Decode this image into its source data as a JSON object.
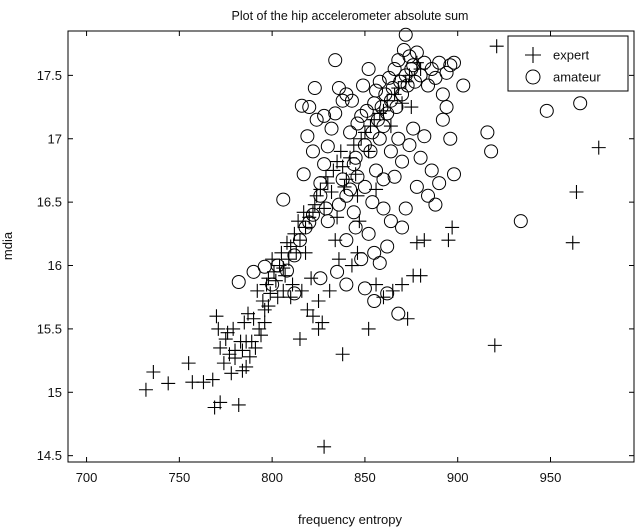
{
  "chart_data": {
    "type": "scatter",
    "title": "Plot of  the hip accelerometer absolute sum",
    "xlabel": "frequency entropy",
    "ylabel": "mdia",
    "xlim": [
      690,
      995
    ],
    "ylim": [
      14.45,
      17.85
    ],
    "xticks": [
      700,
      750,
      800,
      850,
      900,
      950
    ],
    "yticks": [
      14.5,
      15,
      15.5,
      16,
      16.5,
      17,
      17.5
    ],
    "xtick_labels": [
      "700",
      "750",
      "800",
      "850",
      "900",
      "950"
    ],
    "ytick_labels": [
      "14.5",
      "15",
      "15.5",
      "16",
      "16.5",
      "17",
      "17.5"
    ],
    "grid": false,
    "legend_position": "top-right",
    "series": [
      {
        "name": "expert",
        "marker": "plus",
        "color": "#000000",
        "points": [
          [
            732,
            15.02
          ],
          [
            736,
            15.16
          ],
          [
            744,
            15.07
          ],
          [
            755,
            15.23
          ],
          [
            757,
            15.08
          ],
          [
            763,
            15.08
          ],
          [
            768,
            15.1
          ],
          [
            769,
            14.88
          ],
          [
            772,
            14.92
          ],
          [
            770,
            15.6
          ],
          [
            771,
            15.5
          ],
          [
            772,
            15.35
          ],
          [
            774,
            15.23
          ],
          [
            775,
            15.42
          ],
          [
            776,
            15.47
          ],
          [
            778,
            15.15
          ],
          [
            779,
            15.5
          ],
          [
            780,
            15.33
          ],
          [
            782,
            14.9
          ],
          [
            783,
            15.4
          ],
          [
            784,
            15.17
          ],
          [
            785,
            15.55
          ],
          [
            786,
            15.2
          ],
          [
            787,
            15.62
          ],
          [
            789,
            15.4
          ],
          [
            790,
            15.58
          ],
          [
            792,
            15.8
          ],
          [
            793,
            15.5
          ],
          [
            795,
            15.72
          ],
          [
            796,
            15.65
          ],
          [
            797,
            15.85
          ],
          [
            798,
            15.9
          ],
          [
            799,
            15.78
          ],
          [
            800,
            16.05
          ],
          [
            801,
            15.95
          ],
          [
            802,
            15.88
          ],
          [
            803,
            15.75
          ],
          [
            804,
            16.0
          ],
          [
            805,
            16.1
          ],
          [
            806,
            15.98
          ],
          [
            807,
            15.92
          ],
          [
            808,
            16.18
          ],
          [
            809,
            16.05
          ],
          [
            810,
            16.15
          ],
          [
            811,
            15.85
          ],
          [
            812,
            16.25
          ],
          [
            813,
            16.1
          ],
          [
            814,
            16.35
          ],
          [
            815,
            16.2
          ],
          [
            816,
            15.8
          ],
          [
            817,
            16.42
          ],
          [
            818,
            16.3
          ],
          [
            819,
            15.65
          ],
          [
            820,
            16.38
          ],
          [
            821,
            15.9
          ],
          [
            822,
            15.6
          ],
          [
            823,
            16.48
          ],
          [
            824,
            16.55
          ],
          [
            825,
            15.72
          ],
          [
            826,
            16.6
          ],
          [
            827,
            15.55
          ],
          [
            828,
            16.45
          ],
          [
            829,
            16.7
          ],
          [
            830,
            16.65
          ],
          [
            831,
            15.8
          ],
          [
            832,
            16.58
          ],
          [
            833,
            16.75
          ],
          [
            834,
            16.2
          ],
          [
            835,
            16.82
          ],
          [
            836,
            16.05
          ],
          [
            837,
            16.9
          ],
          [
            838,
            16.78
          ],
          [
            839,
            16.62
          ],
          [
            840,
            16.68
          ],
          [
            842,
            16.85
          ],
          [
            844,
            16.95
          ],
          [
            845,
            16.72
          ],
          [
            846,
            16.55
          ],
          [
            848,
            17.0
          ],
          [
            850,
            17.05
          ],
          [
            852,
            16.9
          ],
          [
            853,
            17.1
          ],
          [
            855,
            17.15
          ],
          [
            856,
            16.6
          ],
          [
            858,
            17.2
          ],
          [
            860,
            17.22
          ],
          [
            862,
            17.3
          ],
          [
            864,
            17.1
          ],
          [
            866,
            17.35
          ],
          [
            868,
            17.4
          ],
          [
            870,
            17.28
          ],
          [
            872,
            17.45
          ],
          [
            874,
            17.5
          ],
          [
            875,
            17.25
          ],
          [
            878,
            17.6
          ],
          [
            880,
            17.55
          ],
          [
            815,
            15.42
          ],
          [
            825,
            15.5
          ],
          [
            838,
            15.3
          ],
          [
            852,
            15.5
          ],
          [
            860,
            15.75
          ],
          [
            865,
            15.8
          ],
          [
            870,
            15.85
          ],
          [
            873,
            15.58
          ],
          [
            876,
            15.92
          ],
          [
            878,
            16.18
          ],
          [
            880,
            15.92
          ],
          [
            882,
            16.2
          ],
          [
            895,
            16.2
          ],
          [
            897,
            16.3
          ],
          [
            920,
            15.37
          ],
          [
            962,
            16.18
          ],
          [
            964,
            16.58
          ],
          [
            976,
            16.93
          ],
          [
            921,
            17.73
          ],
          [
            828,
            14.57
          ],
          [
            843,
            16.0
          ],
          [
            846,
            16.1
          ],
          [
            856,
            15.85
          ],
          [
            847,
            16.35
          ],
          [
            835,
            16.38
          ],
          [
            822,
            16.42
          ],
          [
            818,
            16.1
          ],
          [
            810,
            15.75
          ],
          [
            806,
            15.8
          ],
          [
            798,
            15.68
          ],
          [
            796,
            15.55
          ],
          [
            794,
            15.45
          ],
          [
            791,
            15.35
          ],
          [
            788,
            15.28
          ],
          [
            786,
            15.4
          ],
          [
            784,
            15.33
          ],
          [
            780,
            15.27
          ],
          [
            777,
            15.3
          ]
        ]
      },
      {
        "name": "amateur",
        "marker": "circle",
        "color": "#000000",
        "points": [
          [
            782,
            15.87
          ],
          [
            790,
            15.95
          ],
          [
            796,
            15.99
          ],
          [
            800,
            15.85
          ],
          [
            803,
            16.0
          ],
          [
            808,
            15.96
          ],
          [
            812,
            16.08
          ],
          [
            815,
            16.2
          ],
          [
            818,
            16.3
          ],
          [
            820,
            16.34
          ],
          [
            806,
            16.52
          ],
          [
            817,
            16.72
          ],
          [
            819,
            17.02
          ],
          [
            820,
            17.25
          ],
          [
            822,
            16.9
          ],
          [
            824,
            17.15
          ],
          [
            826,
            16.65
          ],
          [
            828,
            16.8
          ],
          [
            829,
            16.45
          ],
          [
            830,
            16.94
          ],
          [
            832,
            17.08
          ],
          [
            834,
            17.2
          ],
          [
            836,
            17.4
          ],
          [
            838,
            17.3
          ],
          [
            840,
            17.35
          ],
          [
            842,
            17.05
          ],
          [
            843,
            17.3
          ],
          [
            844,
            16.8
          ],
          [
            845,
            16.85
          ],
          [
            846,
            17.12
          ],
          [
            848,
            17.18
          ],
          [
            849,
            17.42
          ],
          [
            850,
            16.95
          ],
          [
            851,
            17.22
          ],
          [
            852,
            17.55
          ],
          [
            853,
            16.9
          ],
          [
            854,
            17.05
          ],
          [
            855,
            17.28
          ],
          [
            856,
            17.38
          ],
          [
            857,
            17.15
          ],
          [
            858,
            17.45
          ],
          [
            859,
            17.25
          ],
          [
            860,
            17.1
          ],
          [
            861,
            17.35
          ],
          [
            862,
            17.2
          ],
          [
            863,
            17.48
          ],
          [
            864,
            17.3
          ],
          [
            865,
            17.4
          ],
          [
            866,
            17.55
          ],
          [
            867,
            17.25
          ],
          [
            868,
            17.62
          ],
          [
            869,
            17.45
          ],
          [
            870,
            17.35
          ],
          [
            871,
            17.7
          ],
          [
            872,
            17.5
          ],
          [
            873,
            17.42
          ],
          [
            874,
            17.65
          ],
          [
            875,
            17.55
          ],
          [
            876,
            17.58
          ],
          [
            877,
            17.45
          ],
          [
            878,
            17.68
          ],
          [
            880,
            17.5
          ],
          [
            882,
            17.6
          ],
          [
            884,
            17.42
          ],
          [
            886,
            17.55
          ],
          [
            888,
            17.48
          ],
          [
            890,
            17.6
          ],
          [
            892,
            17.35
          ],
          [
            894,
            17.52
          ],
          [
            896,
            17.58
          ],
          [
            898,
            17.6
          ],
          [
            903,
            17.42
          ],
          [
            872,
            17.82
          ],
          [
            834,
            17.62
          ],
          [
            823,
            17.4
          ],
          [
            816,
            17.26
          ],
          [
            858,
            17.0
          ],
          [
            856,
            16.75
          ],
          [
            860,
            16.68
          ],
          [
            864,
            16.9
          ],
          [
            866,
            16.7
          ],
          [
            868,
            17.0
          ],
          [
            870,
            16.82
          ],
          [
            872,
            16.45
          ],
          [
            874,
            16.95
          ],
          [
            876,
            17.08
          ],
          [
            878,
            16.62
          ],
          [
            880,
            16.85
          ],
          [
            882,
            17.02
          ],
          [
            884,
            16.55
          ],
          [
            886,
            16.75
          ],
          [
            888,
            16.48
          ],
          [
            890,
            16.65
          ],
          [
            892,
            17.15
          ],
          [
            894,
            17.25
          ],
          [
            896,
            17.0
          ],
          [
            898,
            16.72
          ],
          [
            840,
            16.2
          ],
          [
            845,
            16.3
          ],
          [
            848,
            16.05
          ],
          [
            852,
            16.25
          ],
          [
            855,
            16.1
          ],
          [
            858,
            16.02
          ],
          [
            862,
            16.15
          ],
          [
            835,
            15.95
          ],
          [
            840,
            15.85
          ],
          [
            850,
            15.82
          ],
          [
            855,
            15.72
          ],
          [
            862,
            15.78
          ],
          [
            868,
            15.62
          ],
          [
            826,
            15.9
          ],
          [
            812,
            15.78
          ],
          [
            916,
            17.05
          ],
          [
            918,
            16.9
          ],
          [
            934,
            16.35
          ],
          [
            948,
            17.22
          ],
          [
            966,
            17.28
          ],
          [
            828,
            17.18
          ],
          [
            840,
            16.55
          ],
          [
            844,
            16.42
          ],
          [
            836,
            16.48
          ],
          [
            830,
            16.35
          ],
          [
            826,
            16.55
          ],
          [
            822,
            16.4
          ],
          [
            846,
            16.7
          ],
          [
            838,
            16.68
          ],
          [
            842,
            16.6
          ],
          [
            850,
            16.62
          ],
          [
            854,
            16.5
          ],
          [
            860,
            16.45
          ],
          [
            864,
            16.35
          ],
          [
            870,
            16.3
          ]
        ]
      }
    ]
  }
}
